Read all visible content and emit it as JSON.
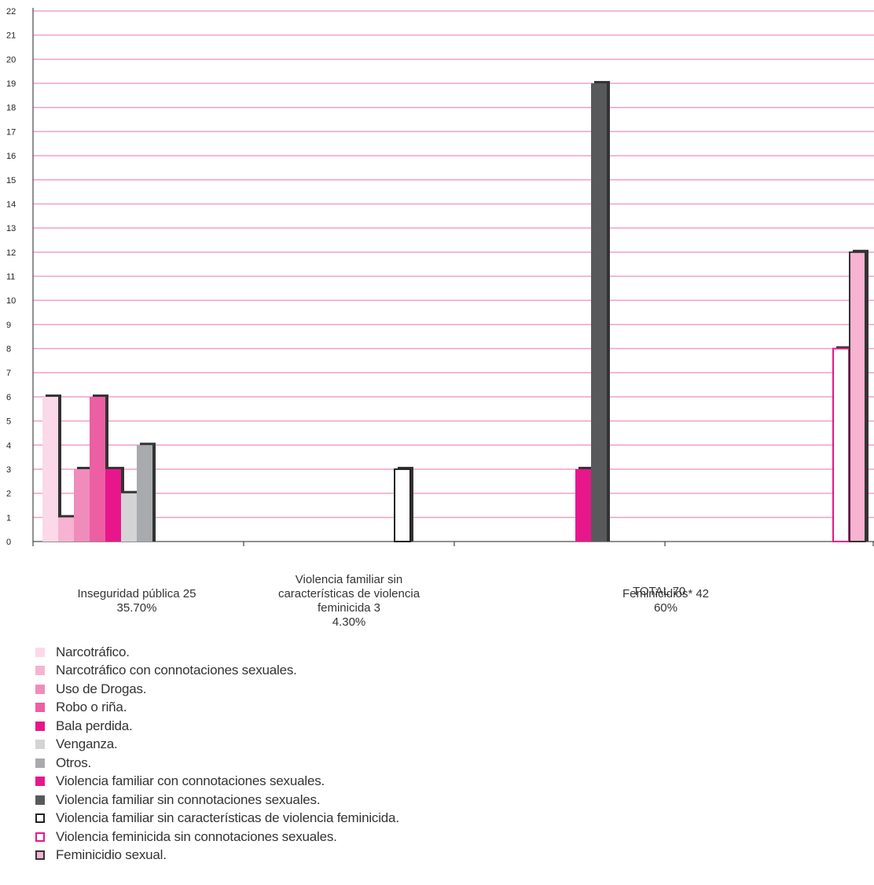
{
  "chart_data": {
    "type": "bar",
    "title": "",
    "xlabel": "",
    "ylabel": "",
    "ylim": [
      0,
      22
    ],
    "yticks": [
      0,
      1,
      2,
      3,
      4,
      5,
      6,
      7,
      8,
      9,
      10,
      11,
      12,
      13,
      14,
      15,
      16,
      17,
      18,
      19,
      20,
      21,
      22
    ],
    "grid": true,
    "gridColor": "#f0a0c8",
    "groups": [
      {
        "label": "Inseguridad pública 25\n35.70%",
        "boxColor": "#f5cfe2",
        "bars": [
          {
            "series": "Narcotráfico.",
            "value": 6
          },
          {
            "series": "Narcotráfico con connotaciones sexuales.",
            "value": 1
          },
          {
            "series": "Uso de Drogas.",
            "value": 3
          },
          {
            "series": "Robo o riña.",
            "value": 6
          },
          {
            "series": "Bala perdida.",
            "value": 3
          },
          {
            "series": "Venganza.",
            "value": 2
          },
          {
            "series": "Otros.",
            "value": 4
          }
        ]
      },
      {
        "label": "Violencia familiar sin\ncaracterísticas de violencia\nfeminicida 3\n4.30%",
        "boxColor": "#fbe3ee",
        "bars": [
          {
            "series": "Violencia familiar sin características de violencia feminicida.",
            "value": 3
          }
        ]
      },
      {
        "label": "Feminicidios* 42\n60%",
        "boxColor": "#f7d3e5",
        "bars": [
          {
            "series": "Violencia familiar con connotaciones sexuales.",
            "value": 3
          },
          {
            "series": "Violencia familiar sin connotaciones sexuales.",
            "value": 19
          },
          {
            "series": "Violencia feminicida sin connotaciones sexuales.",
            "value": 8
          },
          {
            "series": "Feminicidio sexual.",
            "value": 12
          }
        ]
      }
    ],
    "total_label": "TOTAL 70",
    "legend": [
      {
        "label": "Narcotráfico.",
        "fill": "#fbd9e8",
        "stroke": "none"
      },
      {
        "label": "Narcotráfico con connotaciones sexuales.",
        "fill": "#f7b3d1",
        "stroke": "none"
      },
      {
        "label": "Uso de Drogas.",
        "fill": "#f08cbb",
        "stroke": "none"
      },
      {
        "label": "Robo o riña.",
        "fill": "#ec5fa3",
        "stroke": "none"
      },
      {
        "label": "Bala perdida.",
        "fill": "#e8168b",
        "stroke": "none"
      },
      {
        "label": "Venganza.",
        "fill": "#d4d4d6",
        "stroke": "none"
      },
      {
        "label": "Otros.",
        "fill": "#a9aaad",
        "stroke": "none"
      },
      {
        "label": "Violencia familiar con connotaciones sexuales.",
        "fill": "#e8168b",
        "stroke": "none"
      },
      {
        "label": "Violencia familiar sin connotaciones sexuales.",
        "fill": "#58595b",
        "stroke": "none"
      },
      {
        "label": "Violencia familiar sin características de violencia feminicida.",
        "fill": "#ffffff",
        "stroke": "#222222"
      },
      {
        "label": "Violencia feminicida sin connotaciones sexuales.",
        "fill": "#ffffff",
        "stroke": "#e8168b"
      },
      {
        "label": "Feminicidio sexual.",
        "fill": "#f7b3d1",
        "stroke": "#333333"
      }
    ]
  }
}
